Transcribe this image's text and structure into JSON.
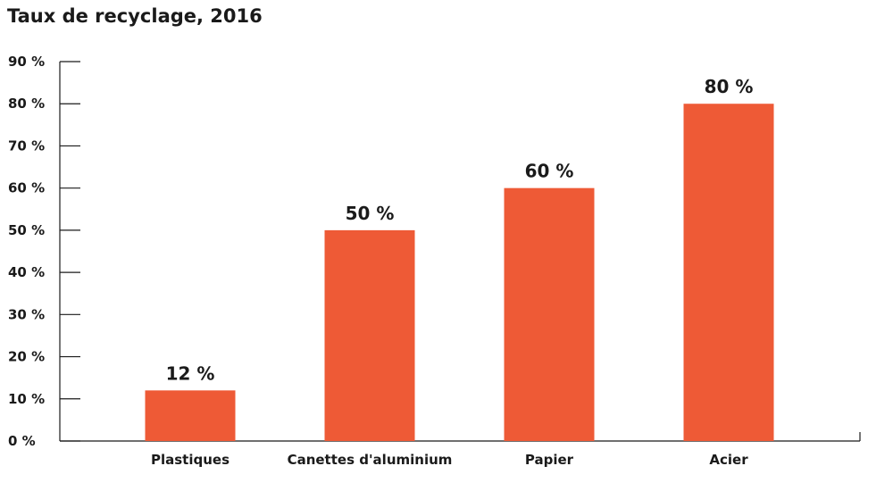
{
  "chart_data": {
    "type": "bar",
    "title": "Taux de recyclage, 2016",
    "categories": [
      "Plastiques",
      "Canettes d'aluminium",
      "Papier",
      "Acier"
    ],
    "values": [
      12,
      50,
      60,
      80
    ],
    "data_labels": [
      "12 %",
      "50 %",
      "60 %",
      "80 %"
    ],
    "ylim": [
      0,
      90
    ],
    "yticks": [
      0,
      10,
      20,
      30,
      40,
      50,
      60,
      70,
      80,
      90
    ],
    "ytick_labels": [
      "0 %",
      "10 %",
      "20 %",
      "30 %",
      "40 %",
      "50 %",
      "60 %",
      "70 %",
      "80 %",
      "90 %"
    ],
    "grid": false,
    "legend": "none",
    "bar_color": "#ee5a36",
    "axis_color": "#1a1a1a"
  }
}
